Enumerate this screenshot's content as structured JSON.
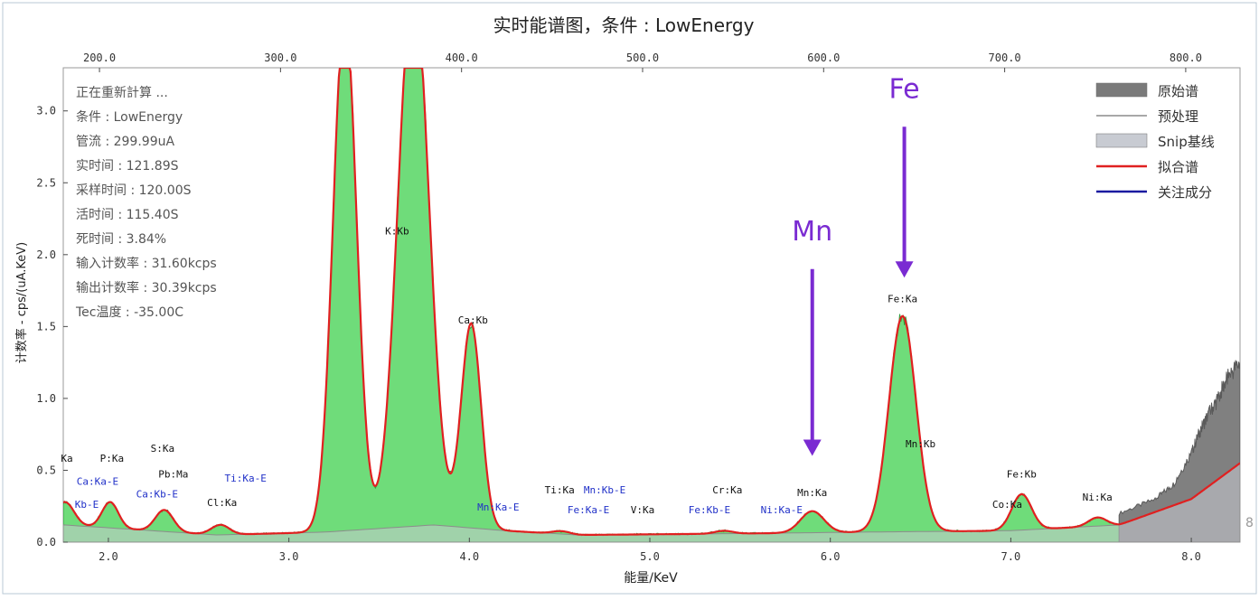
{
  "chart_data": {
    "type": "line",
    "title": "实时能谱图，条件 : LowEnergy",
    "xlabel": "能量/KeV",
    "ylabel": "计数率 - cps/(uA.KeV)",
    "xlim": [
      1.75,
      8.27
    ],
    "ylim": [
      0,
      3.3
    ],
    "x_ticks": [
      "2.0",
      "3.0",
      "4.0",
      "5.0",
      "6.0",
      "7.0",
      "8.0"
    ],
    "y_ticks": [
      "0.0",
      "0.5",
      "1.0",
      "1.5",
      "2.0",
      "2.5",
      "3.0"
    ],
    "top_ticks": [
      "200.0",
      "300.0",
      "400.0",
      "500.0",
      "600.0",
      "700.0",
      "800.0"
    ],
    "right_edge_label": "8",
    "info_lines": [
      "正在重新計算 ...",
      "条件 : LowEnergy",
      "管流 : 299.99uA",
      "实时间 : 121.89S",
      "采样时间 : 120.00S",
      "活时间 : 115.40S",
      "死时间 : 3.84%",
      "输入计数率 : 31.60kcps",
      "输出计数率 : 30.39kcps",
      "Tec温度 : -35.00C"
    ],
    "legend_position": "top-right",
    "legend": [
      {
        "label": "原始谱",
        "style": "box",
        "color": "#7a7a7a"
      },
      {
        "label": "预处理",
        "style": "line",
        "color": "#8c8c8c"
      },
      {
        "label": "Snip基线",
        "style": "box",
        "color": "#c8cbd2"
      },
      {
        "label": "拟合谱",
        "style": "line",
        "color": "#e02020"
      },
      {
        "label": "关注成分",
        "style": "line",
        "color": "#1a1aa0"
      }
    ],
    "fitted_peaks": [
      {
        "center": 1.76,
        "height": 0.16,
        "width": 0.05
      },
      {
        "center": 2.01,
        "height": 0.18,
        "width": 0.045
      },
      {
        "center": 2.31,
        "height": 0.15,
        "width": 0.05
      },
      {
        "center": 2.62,
        "height": 0.07,
        "width": 0.05
      },
      {
        "center": 3.31,
        "height": 3.6,
        "width": 0.065
      },
      {
        "center": 3.69,
        "height": 3.8,
        "width": 0.085
      },
      {
        "center": 4.01,
        "height": 1.42,
        "width": 0.055
      },
      {
        "center": 4.51,
        "height": 0.02,
        "width": 0.05
      },
      {
        "center": 5.41,
        "height": 0.02,
        "width": 0.05
      },
      {
        "center": 5.9,
        "height": 0.15,
        "width": 0.065
      },
      {
        "center": 6.4,
        "height": 1.5,
        "width": 0.075
      },
      {
        "center": 7.06,
        "height": 0.25,
        "width": 0.055
      },
      {
        "center": 7.48,
        "height": 0.06,
        "width": 0.05
      }
    ],
    "baseline_points": [
      [
        1.75,
        0.12
      ],
      [
        2.0,
        0.1
      ],
      [
        2.6,
        0.05
      ],
      [
        3.2,
        0.07
      ],
      [
        3.8,
        0.12
      ],
      [
        4.2,
        0.08
      ],
      [
        4.6,
        0.05
      ],
      [
        5.5,
        0.06
      ],
      [
        6.2,
        0.07
      ],
      [
        7.0,
        0.08
      ],
      [
        7.6,
        0.12
      ],
      [
        8.0,
        0.3
      ],
      [
        8.27,
        0.55
      ]
    ],
    "fit_shown_range": [
      1.75,
      8.27
    ],
    "raw_green_range": [
      1.75,
      7.6
    ],
    "raw_gray_range": [
      7.6,
      8.27
    ],
    "raw_gray_points": [
      [
        7.6,
        0.2
      ],
      [
        7.8,
        0.3
      ],
      [
        7.9,
        0.4
      ],
      [
        8.0,
        0.62
      ],
      [
        8.05,
        0.78
      ],
      [
        8.1,
        0.9
      ],
      [
        8.15,
        1.0
      ],
      [
        8.2,
        1.15
      ],
      [
        8.27,
        1.25
      ]
    ],
    "peak_labels": [
      {
        "text": "Ka",
        "x": 1.77,
        "y": 0.56,
        "color": "#111111"
      },
      {
        "text": "P:Ka",
        "x": 2.02,
        "y": 0.56,
        "color": "#111111"
      },
      {
        "text": "S:Ka",
        "x": 2.3,
        "y": 0.63,
        "color": "#111111"
      },
      {
        "text": "Pb:Ma",
        "x": 2.36,
        "y": 0.45,
        "color": "#111111"
      },
      {
        "text": "Cl:Ka",
        "x": 2.63,
        "y": 0.25,
        "color": "#111111"
      },
      {
        "text": "Ca:Ka-E",
        "x": 1.94,
        "y": 0.4,
        "color": "#2030c8"
      },
      {
        "text": "Ca:Kb-E",
        "x": 2.27,
        "y": 0.31,
        "color": "#2030c8"
      },
      {
        "text": "Ti:Ka-E",
        "x": 2.76,
        "y": 0.42,
        "color": "#2030c8"
      },
      {
        "text": "Kb-E",
        "x": 1.88,
        "y": 0.24,
        "color": "#2030c8"
      },
      {
        "text": "K:Kb",
        "x": 3.6,
        "y": 2.14,
        "color": "#111111"
      },
      {
        "text": "Ca:Kb",
        "x": 4.02,
        "y": 1.52,
        "color": "#111111"
      },
      {
        "text": "Mn:Ka-E",
        "x": 4.16,
        "y": 0.22,
        "color": "#2030c8"
      },
      {
        "text": "Ti:Ka",
        "x": 4.5,
        "y": 0.34,
        "color": "#111111"
      },
      {
        "text": "Mn:Kb-E",
        "x": 4.75,
        "y": 0.34,
        "color": "#2030c8"
      },
      {
        "text": "Fe:Ka-E",
        "x": 4.66,
        "y": 0.2,
        "color": "#2030c8"
      },
      {
        "text": "V:Ka",
        "x": 4.96,
        "y": 0.2,
        "color": "#111111"
      },
      {
        "text": "Cr:Ka",
        "x": 5.43,
        "y": 0.34,
        "color": "#111111"
      },
      {
        "text": "Fe:Kb-E",
        "x": 5.33,
        "y": 0.2,
        "color": "#2030c8"
      },
      {
        "text": "Ni:Ka-E",
        "x": 5.73,
        "y": 0.2,
        "color": "#2030c8"
      },
      {
        "text": "Mn:Ka",
        "x": 5.9,
        "y": 0.32,
        "color": "#111111"
      },
      {
        "text": "Fe:Ka",
        "x": 6.4,
        "y": 1.67,
        "color": "#111111"
      },
      {
        "text": "Mn:Kb",
        "x": 6.5,
        "y": 0.66,
        "color": "#111111"
      },
      {
        "text": "Fe:Kb",
        "x": 7.06,
        "y": 0.45,
        "color": "#111111"
      },
      {
        "text": "Co:Ka",
        "x": 6.98,
        "y": 0.24,
        "color": "#111111"
      },
      {
        "text": "Ni:Ka",
        "x": 7.48,
        "y": 0.29,
        "color": "#111111"
      }
    ],
    "annotations": [
      {
        "text": "Mn",
        "x": 5.9,
        "y_text": 2.1,
        "arrow_from": 1.9,
        "arrow_to": 0.6,
        "color": "#7a2bd2"
      },
      {
        "text": "Fe",
        "x": 6.41,
        "y_text": 3.09,
        "arrow_from": 2.89,
        "arrow_to": 1.84,
        "color": "#7a2bd2"
      }
    ],
    "colors": {
      "raw_fill": "#6fdc7a",
      "raw_stroke": "#2e9e3c",
      "raw_gray": "#808080",
      "fit": "#e02020",
      "snip": "#c8cbd2",
      "pretreat": "#8c8c8c",
      "focus": "#1a1aa0",
      "axis": "#4a4a4a",
      "annotation": "#7a2bd2"
    }
  }
}
